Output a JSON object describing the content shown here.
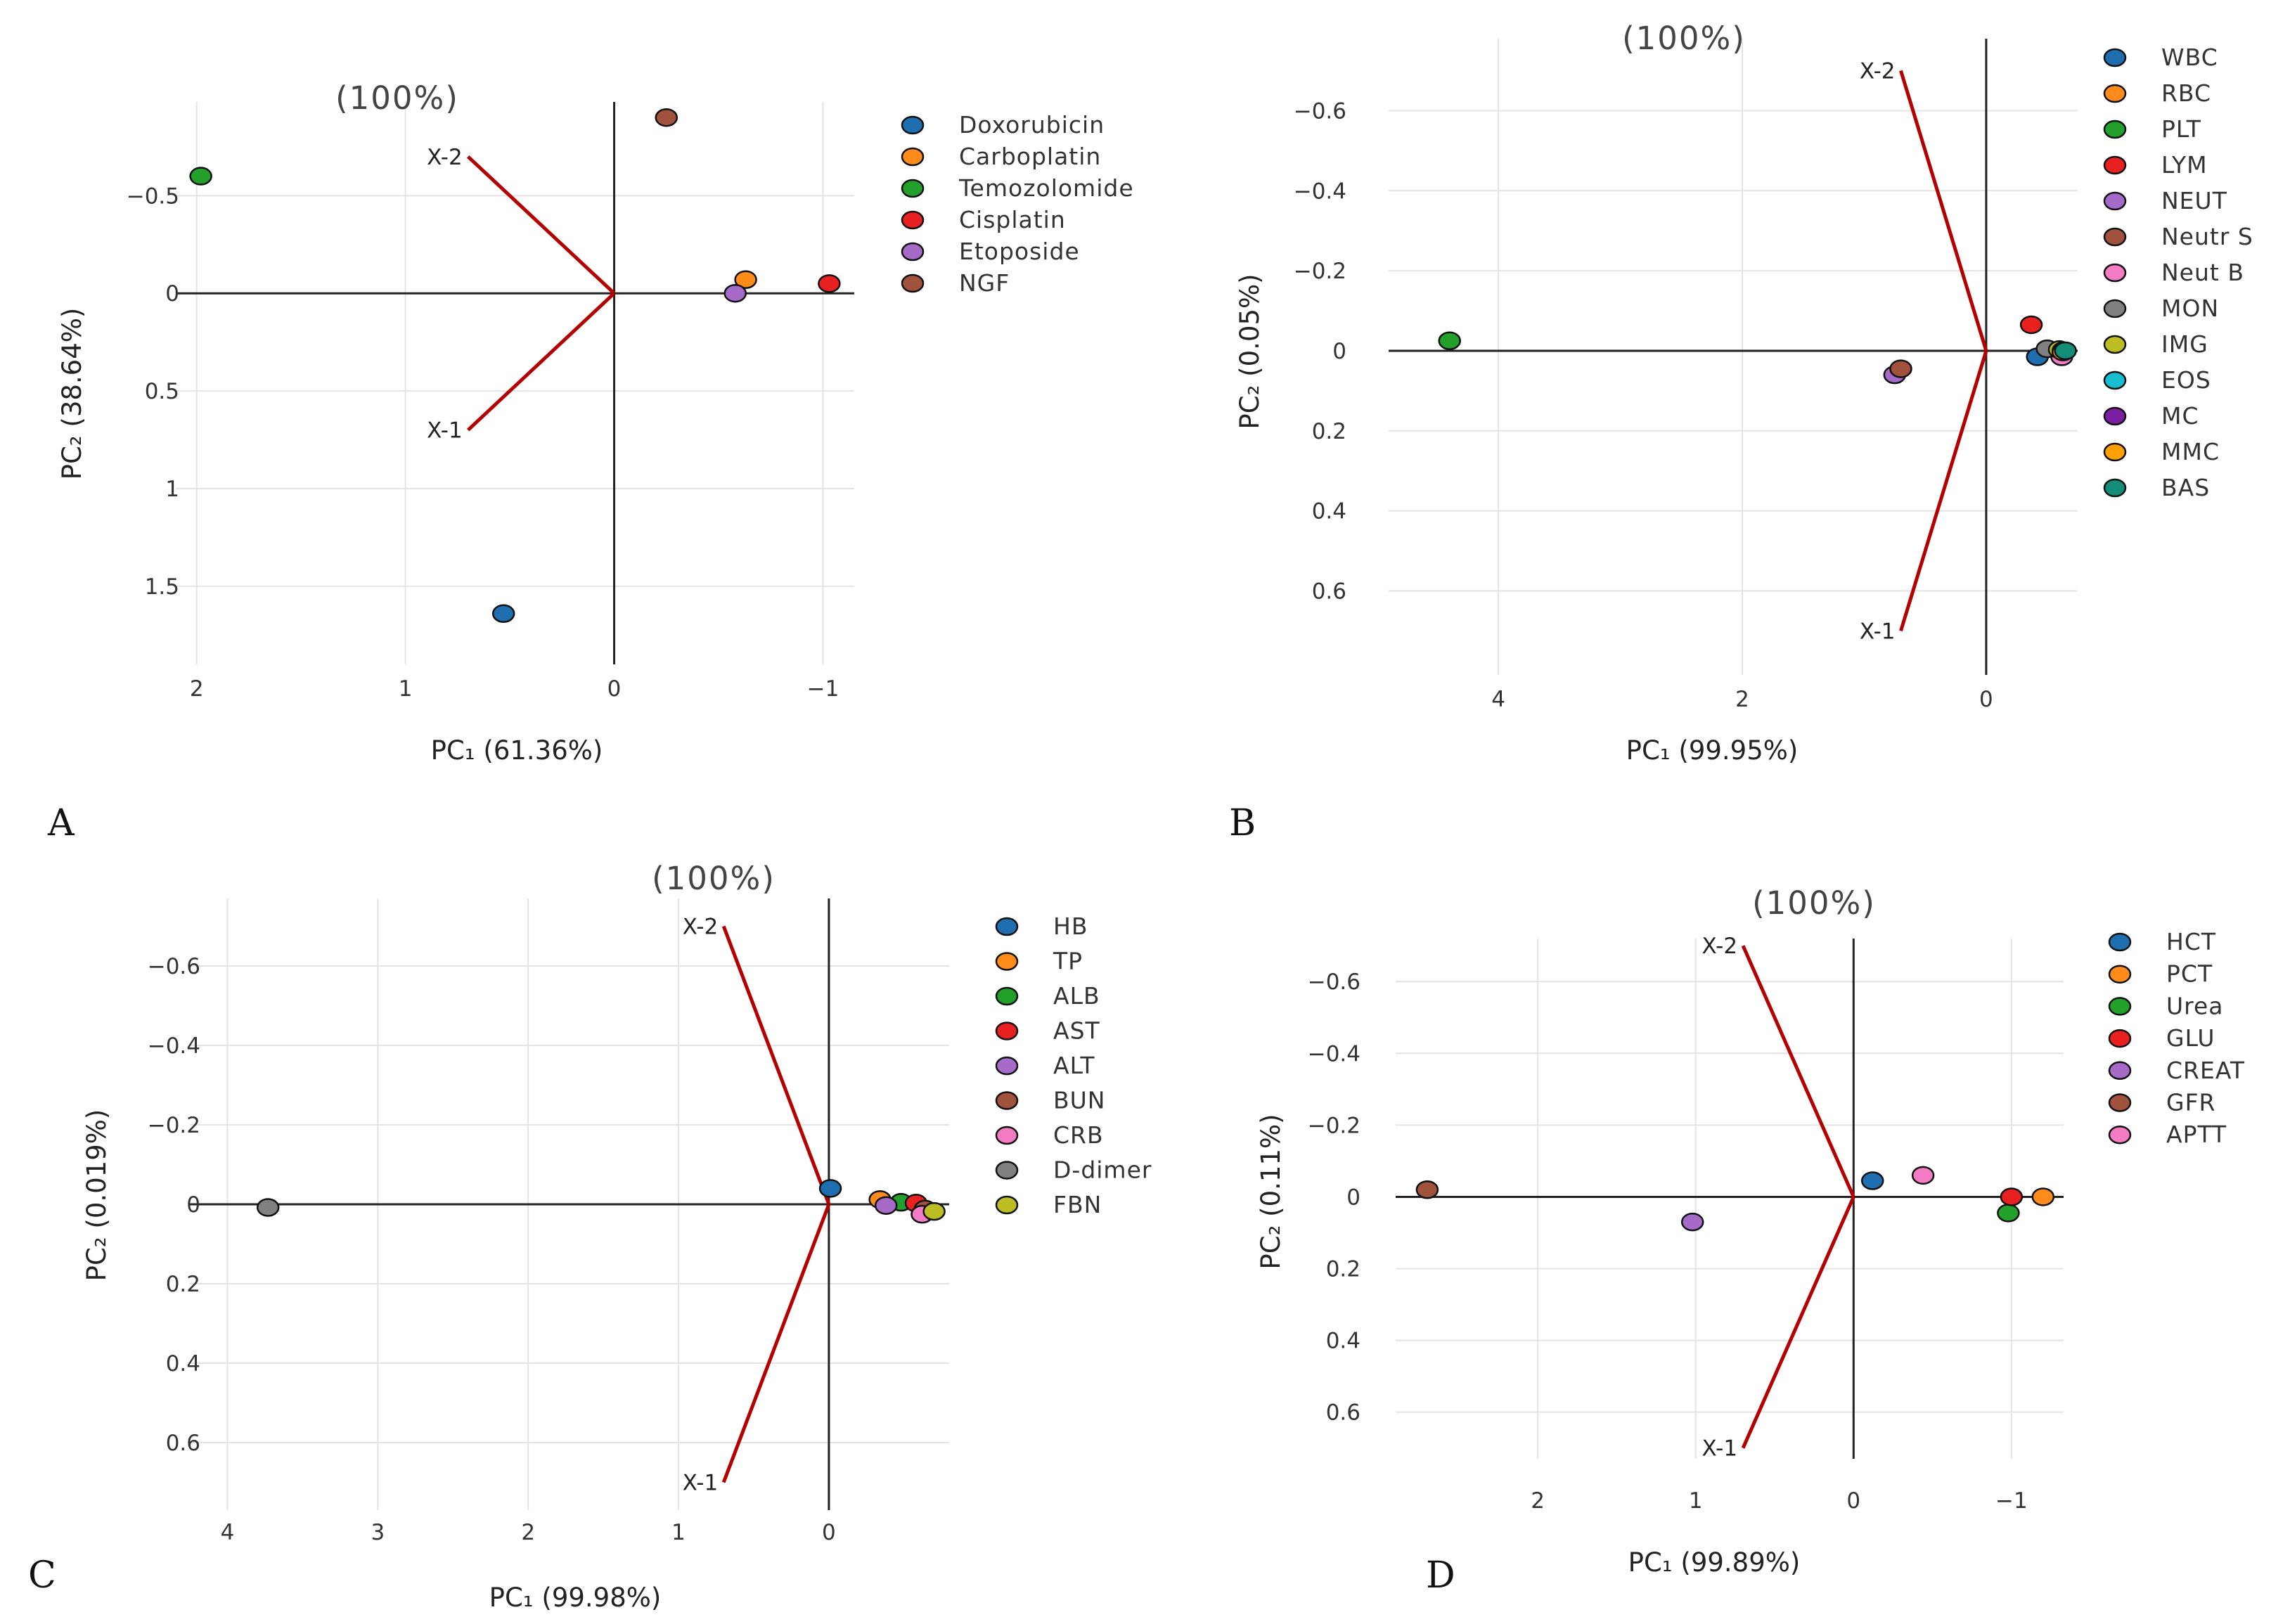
{
  "chart_data": [
    {
      "type": "scatter",
      "panel": "A",
      "title": "(100%)",
      "xlabel": "PC₁ (61.36%)",
      "ylabel": "PC₂ (38.64%)",
      "xlim": [
        2.1,
        -1.15
      ],
      "ylim": [
        -0.98,
        1.9
      ],
      "xticks": [
        2,
        1,
        0,
        -1
      ],
      "xtick_labels": [
        "2",
        "1",
        "0",
        "−1"
      ],
      "yticks": [
        -0.5,
        0,
        0.5,
        1,
        1.5
      ],
      "ytick_labels": [
        "−0.5",
        "0",
        "0.5",
        "1",
        "1.5"
      ],
      "vectors": [
        {
          "name": "X-1",
          "x": 0.7,
          "y": 0.7
        },
        {
          "name": "X-2",
          "x": 0.7,
          "y": -0.7
        }
      ],
      "series": [
        {
          "name": "Doxorubicin",
          "color": "#1f6fb0",
          "x": [
            0.53
          ],
          "y": [
            1.64
          ]
        },
        {
          "name": "Carboplatin",
          "color": "#ff8c1a",
          "x": [
            -0.63
          ],
          "y": [
            -0.07
          ]
        },
        {
          "name": "Temozolomide",
          "color": "#22a02a",
          "x": [
            1.98
          ],
          "y": [
            -0.6
          ]
        },
        {
          "name": "Cisplatin",
          "color": "#e82020",
          "x": [
            -1.03
          ],
          "y": [
            -0.05
          ]
        },
        {
          "name": "Etoposide",
          "color": "#a66bc9",
          "x": [
            -0.58
          ],
          "y": [
            0.0
          ]
        },
        {
          "name": "NGF",
          "color": "#a0523c",
          "x": [
            -0.25
          ],
          "y": [
            -0.9
          ]
        }
      ]
    },
    {
      "type": "scatter",
      "panel": "B",
      "title": "(100%)",
      "xlabel": "PC₁ (99.95%)",
      "ylabel": "PC₂ (0.05%)",
      "xlim": [
        4.9,
        -0.75
      ],
      "ylim": [
        -0.78,
        0.81
      ],
      "xticks": [
        4,
        2,
        0
      ],
      "xtick_labels": [
        "4",
        "2",
        "0"
      ],
      "yticks": [
        -0.6,
        -0.4,
        -0.2,
        0,
        0.2,
        0.4,
        0.6
      ],
      "ytick_labels": [
        "−0.6",
        "−0.4",
        "−0.2",
        "0",
        "0.2",
        "0.4",
        "0.6"
      ],
      "vectors": [
        {
          "name": "X-1",
          "x": 0.7,
          "y": 0.7
        },
        {
          "name": "X-2",
          "x": 0.7,
          "y": -0.7
        }
      ],
      "series": [
        {
          "name": "WBC",
          "color": "#1f6fb0",
          "x": [
            -0.42
          ],
          "y": [
            0.015
          ]
        },
        {
          "name": "RBC",
          "color": "#ff8c1a",
          "x": [
            -0.6
          ],
          "y": [
            0.0
          ]
        },
        {
          "name": "PLT",
          "color": "#22a02a",
          "x": [
            4.4
          ],
          "y": [
            -0.025
          ]
        },
        {
          "name": "LYM",
          "color": "#e82020",
          "x": [
            -0.37
          ],
          "y": [
            -0.065
          ]
        },
        {
          "name": "NEUT",
          "color": "#a66bc9",
          "x": [
            0.75
          ],
          "y": [
            0.06
          ]
        },
        {
          "name": "Neutr S",
          "color": "#a0523c",
          "x": [
            0.7
          ],
          "y": [
            0.045
          ]
        },
        {
          "name": "Neut B",
          "color": "#f47bc4",
          "x": [
            -0.62
          ],
          "y": [
            0.015
          ]
        },
        {
          "name": "MON",
          "color": "#808080",
          "x": [
            -0.5
          ],
          "y": [
            -0.005
          ]
        },
        {
          "name": "IMG",
          "color": "#bcbd22",
          "x": [
            -0.6
          ],
          "y": [
            -0.003
          ]
        },
        {
          "name": "EOS",
          "color": "#17becf",
          "x": [
            -0.63
          ],
          "y": [
            0.0
          ]
        },
        {
          "name": "MC",
          "color": "#7b1fa2",
          "x": [
            -0.64
          ],
          "y": [
            0.0
          ]
        },
        {
          "name": "MMC",
          "color": "#ffa000",
          "x": [
            -0.63
          ],
          "y": [
            0.003
          ]
        },
        {
          "name": "BAS",
          "color": "#138d75",
          "x": [
            -0.65
          ],
          "y": [
            0.0
          ]
        }
      ]
    },
    {
      "type": "scatter",
      "panel": "C",
      "title": "(100%)",
      "xlabel": "PC₁ (99.98%)",
      "ylabel": "PC₂ (0.019%)",
      "xlim": [
        4.25,
        -0.8
      ],
      "ylim": [
        -0.77,
        0.77
      ],
      "xticks": [
        4,
        3,
        2,
        1,
        0
      ],
      "xtick_labels": [
        "4",
        "3",
        "2",
        "1",
        "0"
      ],
      "yticks": [
        -0.6,
        -0.4,
        -0.2,
        0,
        0.2,
        0.4,
        0.6
      ],
      "ytick_labels": [
        "−0.6",
        "−0.4",
        "−0.2",
        "0",
        "0.2",
        "0.4",
        "0.6"
      ],
      "vectors": [
        {
          "name": "X-1",
          "x": 0.7,
          "y": 0.7
        },
        {
          "name": "X-2",
          "x": 0.7,
          "y": -0.7
        }
      ],
      "series": [
        {
          "name": "HB",
          "color": "#1f6fb0",
          "x": [
            -0.01
          ],
          "y": [
            -0.04
          ]
        },
        {
          "name": "TP",
          "color": "#ff8c1a",
          "x": [
            -0.34
          ],
          "y": [
            -0.012
          ]
        },
        {
          "name": "ALB",
          "color": "#22a02a",
          "x": [
            -0.48
          ],
          "y": [
            -0.005
          ]
        },
        {
          "name": "AST",
          "color": "#e82020",
          "x": [
            -0.58
          ],
          "y": [
            -0.003
          ]
        },
        {
          "name": "ALT",
          "color": "#a66bc9",
          "x": [
            -0.38
          ],
          "y": [
            0.003
          ]
        },
        {
          "name": "BUN",
          "color": "#a0523c",
          "x": [
            -0.64
          ],
          "y": [
            0.012
          ]
        },
        {
          "name": "CRB",
          "color": "#f47bc4",
          "x": [
            -0.62
          ],
          "y": [
            0.025
          ]
        },
        {
          "name": "D-dimer",
          "color": "#808080",
          "x": [
            3.73
          ],
          "y": [
            0.008
          ]
        },
        {
          "name": "FBN",
          "color": "#bcbd22",
          "x": [
            -0.7
          ],
          "y": [
            0.018
          ]
        }
      ]
    },
    {
      "type": "scatter",
      "panel": "D",
      "title": "(100%)",
      "xlabel": "PC₁ (99.89%)",
      "ylabel": "PC₂ (0.11%)",
      "xlim": [
        2.9,
        -1.33
      ],
      "ylim": [
        -0.72,
        0.73
      ],
      "xticks": [
        2,
        1,
        0,
        -1
      ],
      "xtick_labels": [
        "2",
        "1",
        "0",
        "−1"
      ],
      "yticks": [
        -0.6,
        -0.4,
        -0.2,
        0,
        0.2,
        0.4,
        0.6
      ],
      "ytick_labels": [
        "−0.6",
        "−0.4",
        "−0.2",
        "0",
        "0.2",
        "0.4",
        "0.6"
      ],
      "vectors": [
        {
          "name": "X-1",
          "x": 0.7,
          "y": 0.7
        },
        {
          "name": "X-2",
          "x": 0.7,
          "y": -0.7
        }
      ],
      "series": [
        {
          "name": "HCT",
          "color": "#1f6fb0",
          "x": [
            -0.12
          ],
          "y": [
            -0.045
          ]
        },
        {
          "name": "PCT",
          "color": "#ff8c1a",
          "x": [
            -1.2
          ],
          "y": [
            0.0
          ]
        },
        {
          "name": "Urea",
          "color": "#22a02a",
          "x": [
            -0.98
          ],
          "y": [
            0.045
          ]
        },
        {
          "name": "GLU",
          "color": "#e82020",
          "x": [
            -1.0
          ],
          "y": [
            0.0
          ]
        },
        {
          "name": "CREAT",
          "color": "#a66bc9",
          "x": [
            1.02
          ],
          "y": [
            0.07
          ]
        },
        {
          "name": "GFR",
          "color": "#a0523c",
          "x": [
            2.7
          ],
          "y": [
            -0.02
          ]
        },
        {
          "name": "APTT",
          "color": "#f47bc4",
          "x": [
            -0.44
          ],
          "y": [
            -0.06
          ]
        }
      ]
    }
  ]
}
